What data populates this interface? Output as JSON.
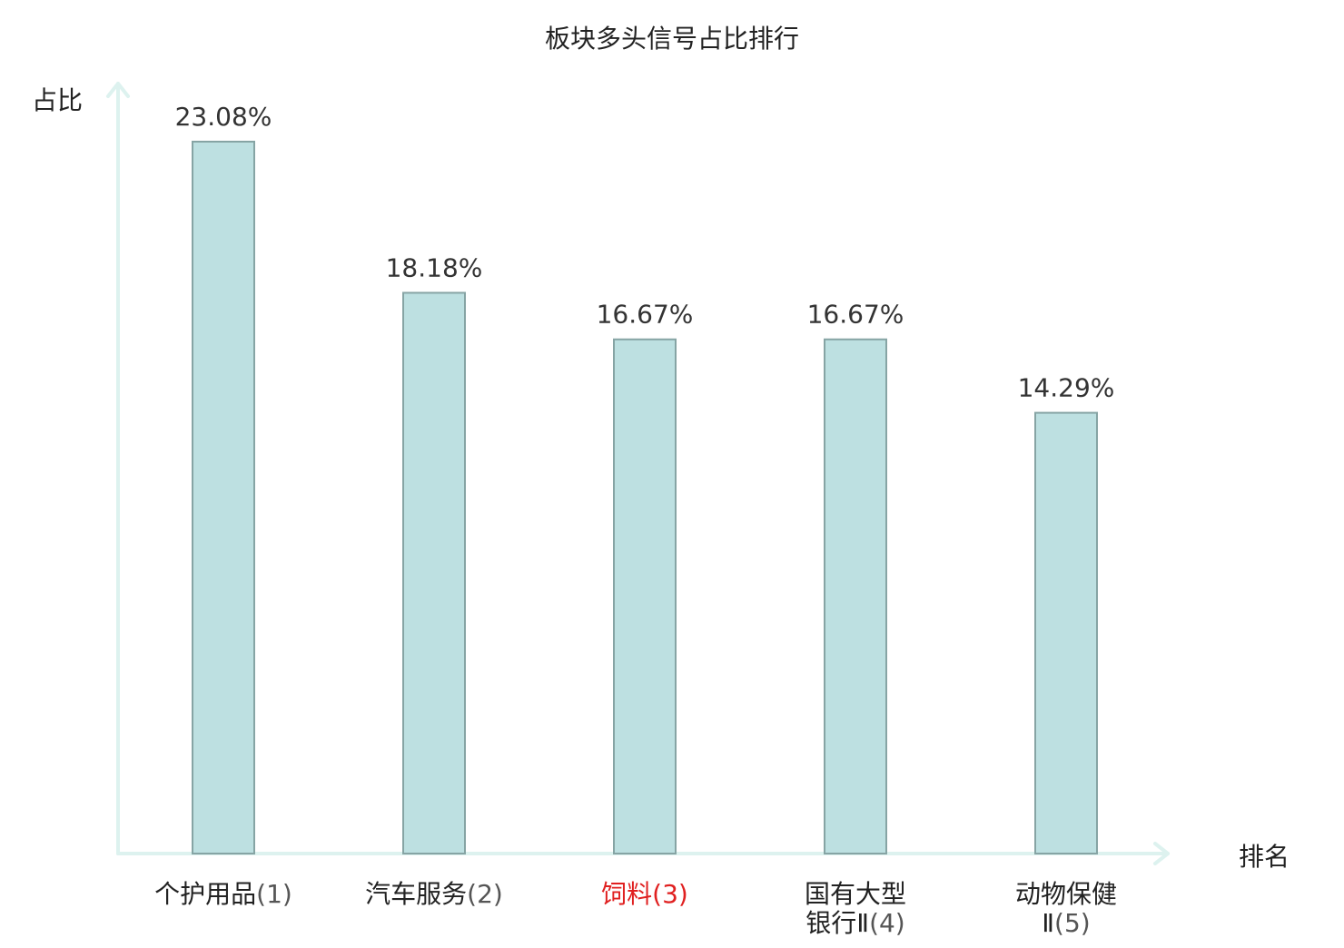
{
  "chart_data": {
    "type": "bar",
    "title": "板块多头信号占比排行",
    "ylabel": "占比",
    "xlabel": "排名",
    "categories": [
      {
        "name_lines": [
          "个护用品"
        ],
        "rank": "(1)",
        "highlight": false
      },
      {
        "name_lines": [
          "汽车服务"
        ],
        "rank": "(2)",
        "highlight": false
      },
      {
        "name_lines": [
          "饲料"
        ],
        "rank": "(3)",
        "highlight": true
      },
      {
        "name_lines": [
          "国有大型",
          "银行Ⅱ"
        ],
        "rank": "(4)",
        "highlight": false
      },
      {
        "name_lines": [
          "动物保健",
          "Ⅱ"
        ],
        "rank": "(5)",
        "highlight": false
      }
    ],
    "values": [
      23.08,
      18.18,
      16.67,
      16.67,
      14.29
    ],
    "value_labels": [
      "23.08%",
      "18.18%",
      "16.67%",
      "16.67%",
      "14.29%"
    ],
    "ylim": [
      0,
      23.08
    ],
    "grid": false,
    "legend": "none"
  },
  "colors": {
    "bar_fill": "#bde0e1",
    "bar_stroke": "#86a4a4",
    "axis": "#ddf2ef",
    "text": "#222222",
    "value_text": "#333333",
    "rank_text": "#555555",
    "highlight": "#e02020"
  }
}
